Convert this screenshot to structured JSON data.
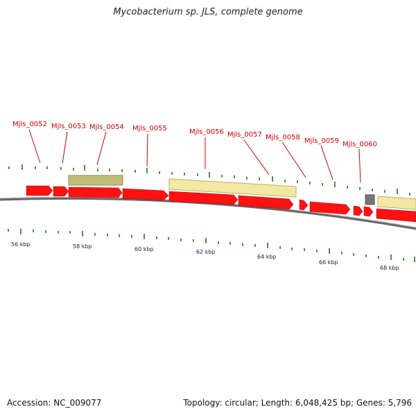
{
  "title": "Mycobacterium sp. JLS, complete genome",
  "footer": {
    "accession": "Accession: NC_009077",
    "summary": "Topology: circular; Length: 6,048,425 bp; Genes: 5,796"
  },
  "colors": {
    "gene_forward": "#ff1111",
    "gene_olive": "#c2be7a",
    "gene_pale": "#f3e9a2",
    "gene_gray": "#777777",
    "backbone": "#666666",
    "tick": "#1a7a1a",
    "label": "#cc0000"
  },
  "gene_labels": [
    "Mjls_0052",
    "Mjls_0053",
    "Mjls_0054",
    "Mjls_0055",
    "Mjls_0056",
    "Mjls_0057",
    "Mjls_0058",
    "Mjls_0059",
    "Mjls_0060"
  ],
  "tick_labels": [
    "56 kbp",
    "58 kbp",
    "60 kbp",
    "62 kbp",
    "64 kbp",
    "66 kbp",
    "68 kbp"
  ]
}
